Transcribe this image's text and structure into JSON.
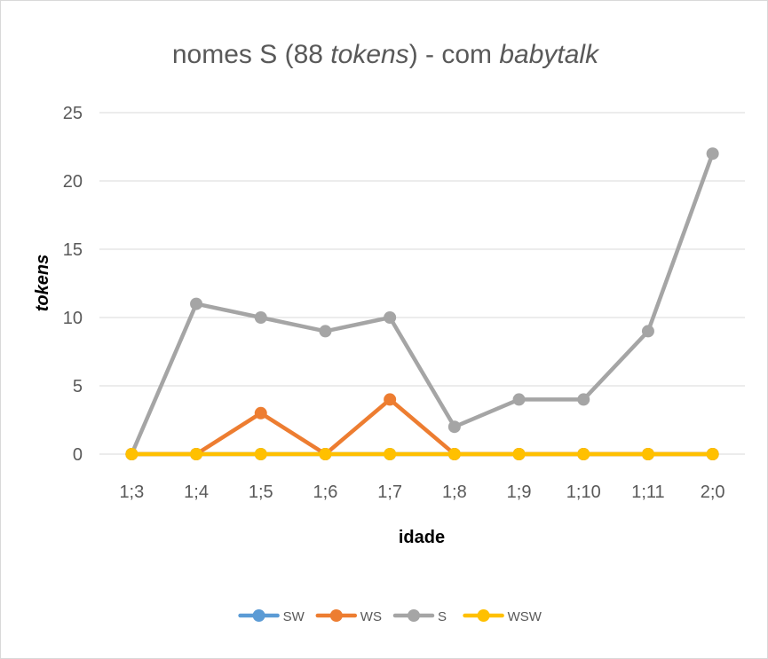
{
  "chart_data": {
    "type": "line",
    "title_parts": [
      {
        "text": "nomes S (88 ",
        "italic": false
      },
      {
        "text": "tokens",
        "italic": true
      },
      {
        "text": ") - com ",
        "italic": false
      },
      {
        "text": "babytalk",
        "italic": true
      }
    ],
    "xlabel": "idade",
    "ylabel": "tokens",
    "categories": [
      "1;3",
      "1;4",
      "1;5",
      "1;6",
      "1;7",
      "1;8",
      "1;9",
      "1;10",
      "1;11",
      "2;0"
    ],
    "ylim": [
      0,
      25
    ],
    "yticks": [
      0,
      5,
      10,
      15,
      20,
      25
    ],
    "grid": true,
    "legend_position": "bottom",
    "series": [
      {
        "name": "SW",
        "color": "#5b9bd5",
        "values": [
          0,
          0,
          0,
          0,
          0,
          0,
          0,
          0,
          0,
          0
        ]
      },
      {
        "name": "WS",
        "color": "#ed7d31",
        "values": [
          0,
          0,
          3,
          0,
          4,
          0,
          0,
          0,
          0,
          0
        ]
      },
      {
        "name": "S",
        "color": "#a5a5a5",
        "values": [
          0,
          11,
          10,
          9,
          10,
          2,
          4,
          4,
          9,
          22
        ]
      },
      {
        "name": "WSW",
        "color": "#ffc000",
        "values": [
          0,
          0,
          0,
          0,
          0,
          0,
          0,
          0,
          0,
          0
        ]
      }
    ]
  }
}
